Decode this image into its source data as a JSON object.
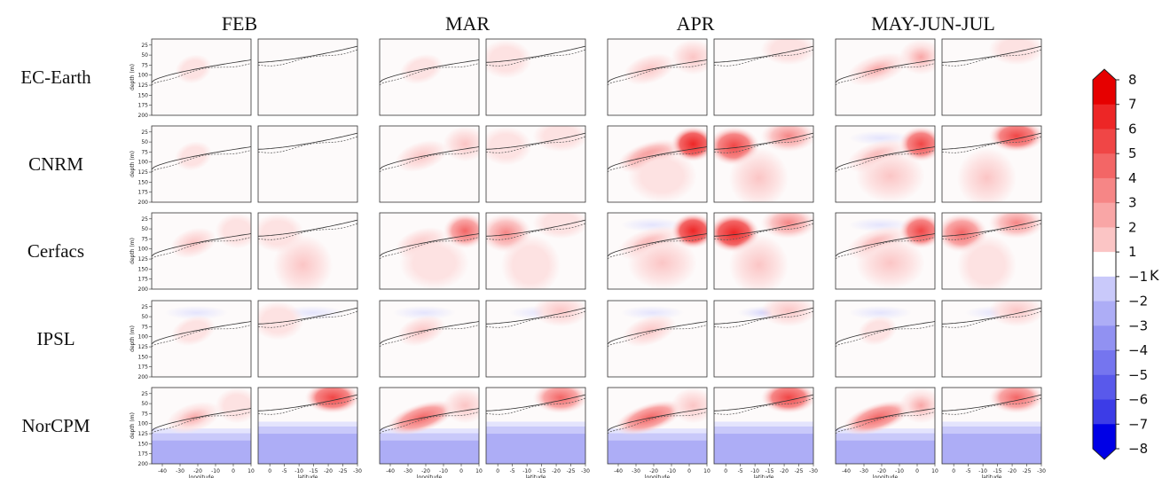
{
  "chart_data": {
    "type": "heatmap",
    "columns": [
      "FEB",
      "MAR",
      "APR",
      "MAY-JUN-JUL"
    ],
    "rows": [
      "EC-Earth",
      "CNRM",
      "Cerfacs",
      "IPSL",
      "NorCPM"
    ],
    "panels_per_column": [
      "longitude",
      "latitude"
    ],
    "ylabel": "depth (m)",
    "y_ticks": [
      25,
      50,
      75,
      100,
      125,
      150,
      175,
      200
    ],
    "ylim": [
      200,
      10
    ],
    "longitude": {
      "xlabel": "longitude",
      "ticks": [
        -40,
        -30,
        -20,
        -10,
        0,
        10
      ],
      "xlim": [
        -46,
        10
      ]
    },
    "latitude": {
      "xlabel": "latitude",
      "ticks": [
        0,
        -5,
        -10,
        -15,
        -20,
        -25,
        -30
      ],
      "xlim": [
        4,
        -30
      ]
    },
    "colorbar": {
      "label": "K",
      "ticks": [
        8,
        7,
        6,
        5,
        4,
        3,
        2,
        1,
        -1,
        -2,
        -3,
        -4,
        -5,
        -6,
        -7,
        -8
      ],
      "range": [
        -8,
        8
      ]
    },
    "intensity": [
      [
        {
          "w": 0.6,
          "c": 0,
          "s": 0,
          "n": 0
        },
        {
          "w": 0,
          "c": 0,
          "s": 0,
          "n": 0
        },
        {
          "w": 1.3,
          "c": 0,
          "s": 0.3,
          "n": 0.3
        },
        {
          "w": 0.6,
          "c": 0.4,
          "s": 0,
          "n": 0
        },
        {
          "w": 2.2,
          "c": 1.5,
          "s": 0,
          "n": 0
        },
        {
          "w": 0,
          "c": 0.5,
          "s": 0,
          "n": 0
        },
        {
          "w": 3.2,
          "c": 2.5,
          "s": 0,
          "n": 0
        },
        {
          "w": 0,
          "c": 1.2,
          "s": 0,
          "n": 0
        }
      ],
      [
        {
          "w": 0.7,
          "c": 0,
          "s": 0,
          "n": 0
        },
        {
          "w": 0,
          "c": 0,
          "s": 0,
          "n": 0
        },
        {
          "w": 2.3,
          "c": 2.2,
          "s": 0,
          "n": 0
        },
        {
          "w": 0.9,
          "c": 1.2,
          "s": 0,
          "n": 0
        },
        {
          "w": 3.5,
          "c": 6.5,
          "s": 1.3,
          "n": 0.4
        },
        {
          "w": 5.5,
          "c": 3.5,
          "s": 2.3,
          "n": 0
        },
        {
          "w": 3.2,
          "c": 5.8,
          "s": 1.6,
          "n": 0.5
        },
        {
          "w": 0,
          "c": 5.8,
          "s": 1.6,
          "n": 0
        }
      ],
      [
        {
          "w": 1.6,
          "c": 0.8,
          "s": 0,
          "n": 0
        },
        {
          "w": 1.2,
          "c": 0,
          "s": 1.5,
          "n": 0.3
        },
        {
          "w": 2.2,
          "c": 4.5,
          "s": 0.7,
          "n": 0.4
        },
        {
          "w": 3.5,
          "c": 1.2,
          "s": 1.3,
          "n": 0
        },
        {
          "w": 3.4,
          "c": 6.8,
          "s": 1.5,
          "n": 0.8
        },
        {
          "w": 6.5,
          "c": 4.2,
          "s": 2.3,
          "n": 0
        },
        {
          "w": 3.2,
          "c": 5.6,
          "s": 1.6,
          "n": 1.1
        },
        {
          "w": 4.5,
          "c": 4.2,
          "s": 1.3,
          "n": 0
        }
      ],
      [
        {
          "w": 1.4,
          "c": 0,
          "s": 0,
          "n": 1.2
        },
        {
          "w": 0.9,
          "c": 0,
          "s": 0,
          "n": 1.3
        },
        {
          "w": 1.8,
          "c": 0,
          "s": 0,
          "n": 1.1
        },
        {
          "w": 0,
          "c": 1.8,
          "s": 0,
          "n": 1.1
        },
        {
          "w": 2.4,
          "c": 0,
          "s": 0,
          "n": 1.3
        },
        {
          "w": 0,
          "c": 2.4,
          "s": 0,
          "n": 1.6
        },
        {
          "w": 0.9,
          "c": 0,
          "s": 0,
          "n": 1.1
        },
        {
          "w": 0,
          "c": 2.3,
          "s": 0,
          "n": 0.7
        }
      ],
      [
        {
          "w": 2.5,
          "c": 1,
          "s": 0,
          "n": 2.4
        },
        {
          "w": 0,
          "c": 5.5,
          "s": 0,
          "n": 2.2
        },
        {
          "w": 4.5,
          "c": 1.8,
          "s": 0,
          "n": 2.4
        },
        {
          "w": 0,
          "c": 5.2,
          "s": 0,
          "n": 2.2
        },
        {
          "w": 4.5,
          "c": 2.2,
          "s": 0,
          "n": 2.4
        },
        {
          "w": 0,
          "c": 5.6,
          "s": 0,
          "n": 2.2
        },
        {
          "w": 4.5,
          "c": 3.2,
          "s": 0,
          "n": 2.4
        },
        {
          "w": 0,
          "c": 5.2,
          "s": 0,
          "n": 2.2
        }
      ]
    ]
  }
}
